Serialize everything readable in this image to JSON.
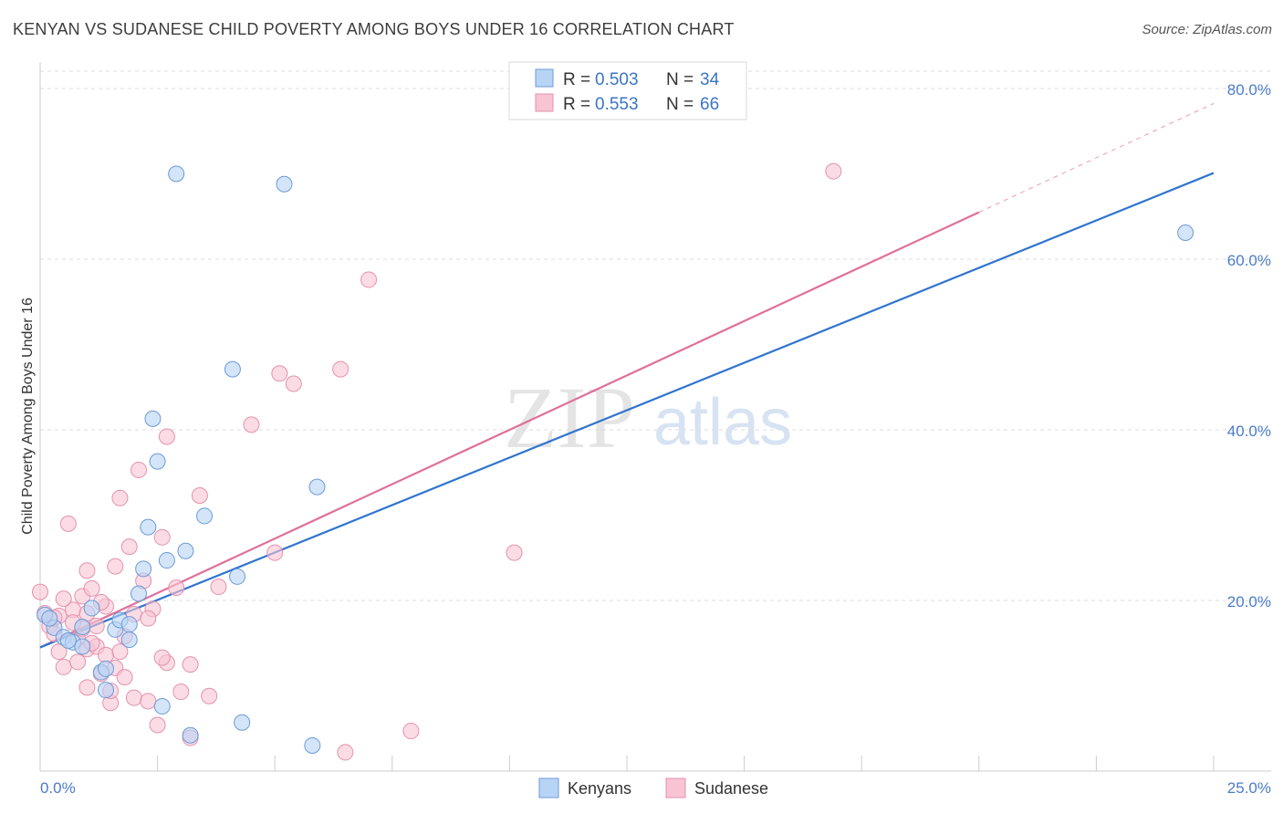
{
  "title": "KENYAN VS SUDANESE CHILD POVERTY AMONG BOYS UNDER 16 CORRELATION CHART",
  "source": "Source: ZipAtlas.com",
  "watermark": {
    "zip": "ZIP",
    "atlas": "atlas"
  },
  "colors": {
    "kenyans_fill": "#b8d4f5",
    "kenyans_stroke": "#6b9bd6",
    "kenyans_line": "#2f74d0",
    "sudanese_fill": "#f8c4d4",
    "sudanese_stroke": "#e591ad",
    "sudanese_line": "#e0709a",
    "accent_text": "#3a75c4",
    "grid": "#dddddd"
  },
  "legend_top": {
    "rows": [
      {
        "r_label": "R =",
        "r_value": "0.503",
        "n_label": "N =",
        "n_value": "34"
      },
      {
        "r_label": "R =",
        "r_value": "0.553",
        "n_label": "N =",
        "n_value": "66"
      }
    ]
  },
  "legend_bottom": {
    "kenyans": "Kenyans",
    "sudanese": "Sudanese"
  },
  "chart_data": {
    "type": "scatter",
    "title": "KENYAN VS SUDANESE CHILD POVERTY AMONG BOYS UNDER 16 CORRELATION CHART",
    "xlabel": "",
    "ylabel": "Child Poverty Among Boys Under 16",
    "xlim": [
      0,
      25
    ],
    "ylim": [
      0,
      80
    ],
    "x_tick_labels": [
      "0.0%",
      "25.0%"
    ],
    "y_tick_labels": [
      "20.0%",
      "40.0%",
      "60.0%",
      "80.0%"
    ],
    "y_ticks": [
      20,
      40,
      60,
      80
    ],
    "grid": true,
    "legend_position": "top-center",
    "series": [
      {
        "name": "Kenyans",
        "r": 0.503,
        "n": 34,
        "trend": {
          "x": [
            0,
            25
          ],
          "y": [
            14.5,
            70.1
          ]
        },
        "points": [
          [
            0.1,
            18.3
          ],
          [
            0.3,
            16.8
          ],
          [
            0.5,
            15.7
          ],
          [
            0.7,
            15.1
          ],
          [
            0.9,
            16.9
          ],
          [
            0.9,
            14.6
          ],
          [
            1.1,
            19.1
          ],
          [
            1.3,
            11.6
          ],
          [
            1.4,
            12.0
          ],
          [
            1.4,
            9.5
          ],
          [
            1.6,
            16.6
          ],
          [
            1.7,
            17.7
          ],
          [
            1.9,
            17.2
          ],
          [
            1.9,
            15.4
          ],
          [
            2.1,
            20.8
          ],
          [
            2.2,
            23.7
          ],
          [
            2.3,
            28.6
          ],
          [
            2.4,
            41.3
          ],
          [
            2.5,
            36.3
          ],
          [
            2.6,
            7.6
          ],
          [
            2.7,
            24.7
          ],
          [
            2.9,
            70.0
          ],
          [
            3.1,
            25.8
          ],
          [
            3.2,
            4.2
          ],
          [
            3.5,
            29.9
          ],
          [
            4.1,
            47.1
          ],
          [
            4.2,
            22.8
          ],
          [
            4.3,
            5.7
          ],
          [
            5.2,
            68.8
          ],
          [
            5.9,
            33.3
          ],
          [
            5.8,
            3.0
          ],
          [
            24.4,
            63.1
          ],
          [
            0.2,
            17.9
          ],
          [
            0.6,
            15.3
          ]
        ]
      },
      {
        "name": "Sudanese",
        "r": 0.553,
        "n": 66,
        "trend": {
          "x": [
            0,
            20
          ],
          "y": [
            14.5,
            65.5
          ]
        },
        "points": [
          [
            0.0,
            21.0
          ],
          [
            0.1,
            18.5
          ],
          [
            0.2,
            17.0
          ],
          [
            0.3,
            16.1
          ],
          [
            0.4,
            18.2
          ],
          [
            0.5,
            12.2
          ],
          [
            0.6,
            29.0
          ],
          [
            0.7,
            18.9
          ],
          [
            0.8,
            15.5
          ],
          [
            0.8,
            12.8
          ],
          [
            0.9,
            20.5
          ],
          [
            0.9,
            16.7
          ],
          [
            1.0,
            9.8
          ],
          [
            1.0,
            23.5
          ],
          [
            1.0,
            14.3
          ],
          [
            1.1,
            21.4
          ],
          [
            1.2,
            17.0
          ],
          [
            1.2,
            14.6
          ],
          [
            1.3,
            11.4
          ],
          [
            1.4,
            19.3
          ],
          [
            1.4,
            13.6
          ],
          [
            1.5,
            8.0
          ],
          [
            1.5,
            9.4
          ],
          [
            1.6,
            24.0
          ],
          [
            1.6,
            12.1
          ],
          [
            1.7,
            32.0
          ],
          [
            1.7,
            14.0
          ],
          [
            1.8,
            15.8
          ],
          [
            1.9,
            26.3
          ],
          [
            2.0,
            8.6
          ],
          [
            2.0,
            18.4
          ],
          [
            2.1,
            35.3
          ],
          [
            2.2,
            22.3
          ],
          [
            2.3,
            8.2
          ],
          [
            2.4,
            19.0
          ],
          [
            2.5,
            5.4
          ],
          [
            2.6,
            27.4
          ],
          [
            2.7,
            12.7
          ],
          [
            2.7,
            39.2
          ],
          [
            2.9,
            21.5
          ],
          [
            3.0,
            9.3
          ],
          [
            3.2,
            3.9
          ],
          [
            3.2,
            12.5
          ],
          [
            3.4,
            32.3
          ],
          [
            3.6,
            8.8
          ],
          [
            3.8,
            21.6
          ],
          [
            4.5,
            40.6
          ],
          [
            5.0,
            25.6
          ],
          [
            5.1,
            46.6
          ],
          [
            5.4,
            45.4
          ],
          [
            6.4,
            47.1
          ],
          [
            6.5,
            2.2
          ],
          [
            7.0,
            57.6
          ],
          [
            7.9,
            4.7
          ],
          [
            10.1,
            25.6
          ],
          [
            16.9,
            70.3
          ],
          [
            0.3,
            18.0
          ],
          [
            0.5,
            20.2
          ],
          [
            0.7,
            17.4
          ],
          [
            1.1,
            15.0
          ],
          [
            1.3,
            19.8
          ],
          [
            1.8,
            11.0
          ],
          [
            2.3,
            17.9
          ],
          [
            2.6,
            13.3
          ],
          [
            0.4,
            14.0
          ],
          [
            1.0,
            18.5
          ]
        ]
      }
    ]
  }
}
